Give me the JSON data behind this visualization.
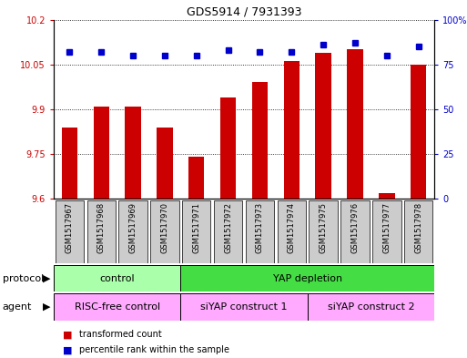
{
  "title": "GDS5914 / 7931393",
  "samples": [
    "GSM1517967",
    "GSM1517968",
    "GSM1517969",
    "GSM1517970",
    "GSM1517971",
    "GSM1517972",
    "GSM1517973",
    "GSM1517974",
    "GSM1517975",
    "GSM1517976",
    "GSM1517977",
    "GSM1517978"
  ],
  "transformed_counts": [
    9.84,
    9.91,
    9.91,
    9.84,
    9.74,
    9.94,
    9.99,
    10.06,
    10.09,
    10.1,
    9.62,
    10.05
  ],
  "percentile_ranks": [
    82,
    82,
    80,
    80,
    80,
    83,
    82,
    82,
    86,
    87,
    80,
    85
  ],
  "ylim_left": [
    9.6,
    10.2
  ],
  "ylim_right": [
    0,
    100
  ],
  "yticks_left": [
    9.6,
    9.75,
    9.9,
    10.05,
    10.2
  ],
  "yticks_right": [
    0,
    25,
    50,
    75,
    100
  ],
  "bar_color": "#cc0000",
  "dot_color": "#0000cc",
  "protocol_groups": [
    {
      "label": "control",
      "start": 0,
      "end": 4,
      "color": "#aaffaa"
    },
    {
      "label": "YAP depletion",
      "start": 4,
      "end": 12,
      "color": "#44dd44"
    }
  ],
  "agent_groups": [
    {
      "label": "RISC-free control",
      "start": 0,
      "end": 4,
      "color": "#ffaaff"
    },
    {
      "label": "siYAP construct 1",
      "start": 4,
      "end": 8,
      "color": "#ffaaff"
    },
    {
      "label": "siYAP construct 2",
      "start": 8,
      "end": 12,
      "color": "#ffaaff"
    }
  ],
  "legend_bar_label": "transformed count",
  "legend_dot_label": "percentile rank within the sample",
  "protocol_label": "protocol",
  "agent_label": "agent",
  "bg_color": "#ffffff",
  "tick_color_left": "#cc0000",
  "tick_color_right": "#0000cc",
  "gray_box_color": "#cccccc"
}
